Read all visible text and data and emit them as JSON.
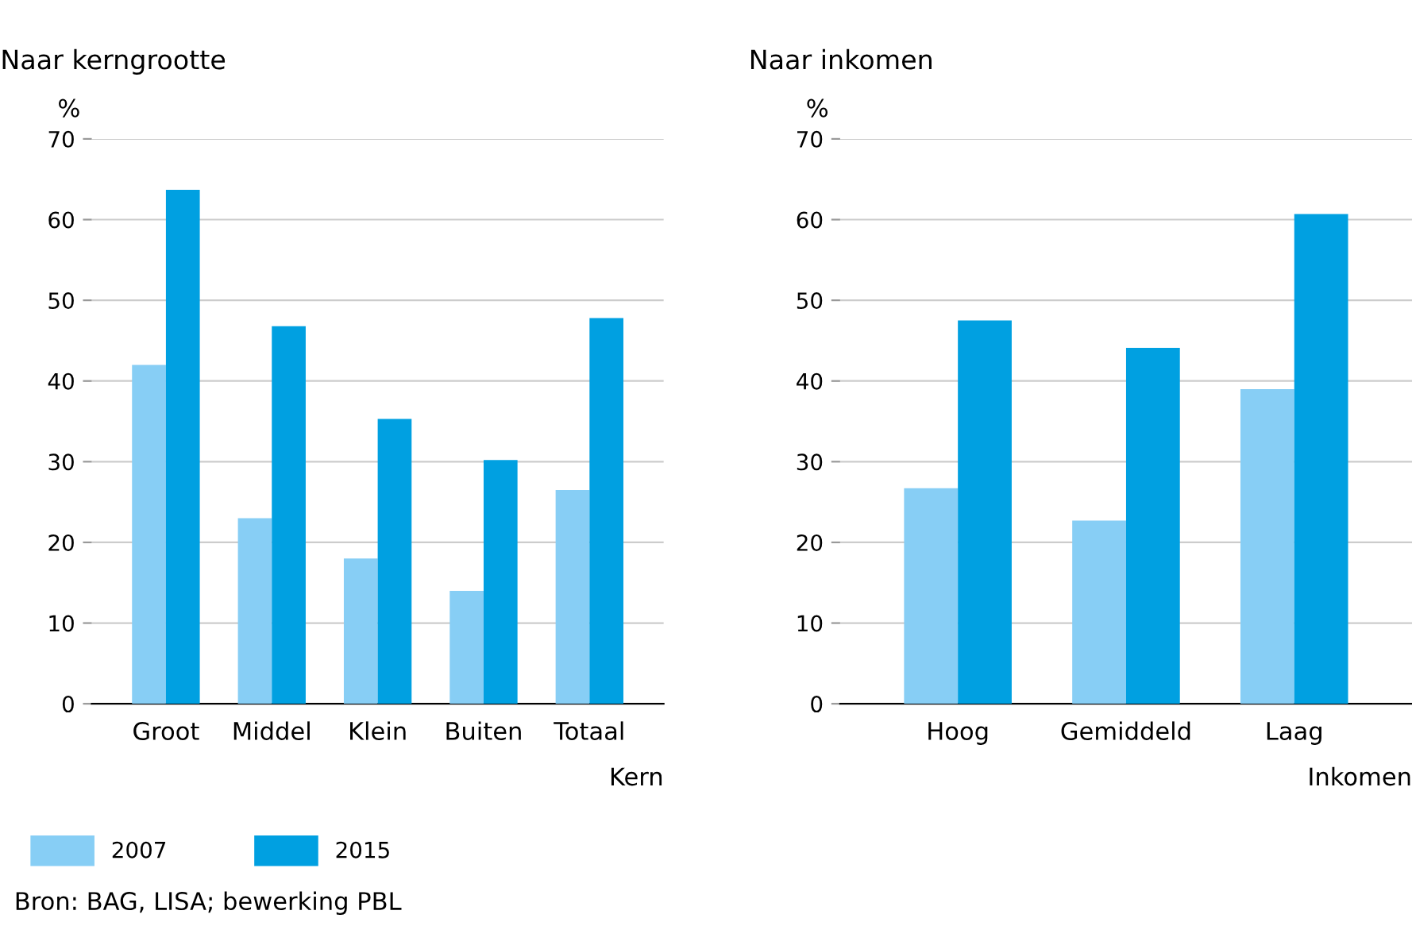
{
  "chart_data": [
    {
      "type": "bar",
      "title": "Naar kerngrootte",
      "ylabel": "%",
      "xlabel": "Kern",
      "categories": [
        "Groot",
        "Middel",
        "Klein",
        "Buiten",
        "Totaal"
      ],
      "series": [
        {
          "name": "2007",
          "color": "#87cef5",
          "values": [
            42,
            23,
            18,
            14,
            26.5
          ]
        },
        {
          "name": "2015",
          "color": "#00a0e1",
          "values": [
            63.7,
            46.8,
            35.3,
            30.2,
            47.8
          ]
        }
      ],
      "ylim": [
        0,
        70
      ],
      "yticks": [
        0,
        10,
        20,
        30,
        40,
        50,
        60,
        70
      ],
      "grid": "y",
      "legend": "bottom",
      "annotations": [
        "Bron: BAG, LISA; bewerking PBL"
      ]
    },
    {
      "type": "bar",
      "title": "Naar inkomen",
      "ylabel": "%",
      "xlabel": "Inkomen",
      "categories": [
        "Hoog",
        "Gemiddeld",
        "Laag"
      ],
      "series": [
        {
          "color": "#87cef5",
          "values": [
            26.7,
            22.7,
            39
          ]
        },
        {
          "color": "#00a0e1",
          "values": [
            47.5,
            44.1,
            60.7
          ]
        }
      ],
      "ylim": [
        0,
        70
      ],
      "yticks": [
        0,
        10,
        20,
        30,
        40,
        50,
        60,
        70
      ],
      "grid": "y"
    }
  ]
}
